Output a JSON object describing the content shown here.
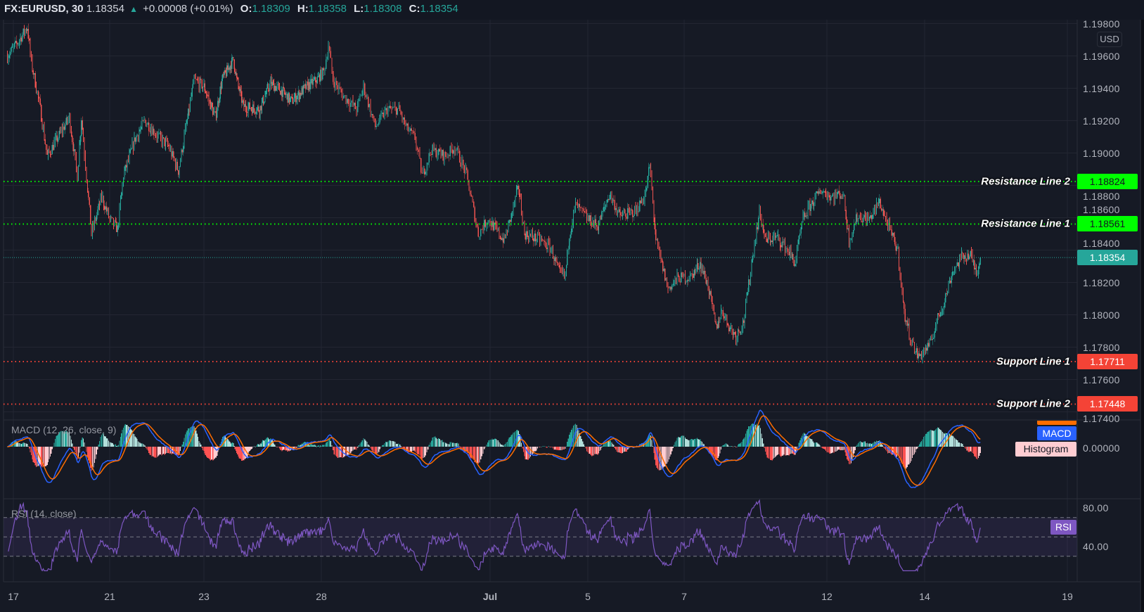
{
  "header": {
    "symbol": "FX:EURUSD, 30",
    "last": "1.18354",
    "change": "+0.00008 (+0.01%)",
    "o_label": "O:",
    "o": "1.18309",
    "h_label": "H:",
    "h": "1.18358",
    "l_label": "L:",
    "l": "1.18308",
    "c_label": "C:",
    "c": "1.18354"
  },
  "price_axis": {
    "currency": "USD",
    "ticks": [
      "1.19800",
      "1.19600",
      "1.19400",
      "1.19200",
      "1.19000",
      "1.18800",
      "1.18600",
      "1.18400",
      "1.18200",
      "1.18000",
      "1.17800",
      "1.17600",
      "1.17400"
    ]
  },
  "time_axis": {
    "ticks": [
      "17",
      "21",
      "23",
      "28",
      "Jul",
      "5",
      "7",
      "12",
      "14",
      "19"
    ]
  },
  "levels": [
    {
      "label": "Resistance Line 2",
      "value": "1.18824",
      "color": "#00ff00"
    },
    {
      "label": "Resistance Line 1",
      "value": "1.18561",
      "color": "#00ff00"
    },
    {
      "label": "Support Line 1",
      "value": "1.17711",
      "color": "#f44336"
    },
    {
      "label": "Support Line 2",
      "value": "1.17448",
      "color": "#f44336"
    }
  ],
  "last_price": {
    "value": "1.18354",
    "color": "#26a69a"
  },
  "macd": {
    "title": "MACD (12, 26, close, 9)",
    "zero_label": "0.00000",
    "macd_tag": "MACD",
    "histogram_tag": "Histogram",
    "colors": {
      "macd": "#2962ff",
      "signal": "#ff6d00",
      "hist_up": "#26a69a",
      "hist_up_weak": "#b2dfdb",
      "hist_down": "#ff5252",
      "hist_down_weak": "#ffcdd2"
    }
  },
  "rsi": {
    "title": "RSI (14, close)",
    "tag": "RSI",
    "axis_labels": [
      "80.00",
      "40.00"
    ],
    "upper": 70,
    "middle": 50,
    "lower": 30,
    "color": "#7e57c2"
  },
  "chart_data": {
    "type": "candlestick",
    "interval": "30",
    "candle_colors": {
      "up": "#26a69a",
      "down": "#ef5350"
    },
    "ylim": [
      1.1735,
      1.1985
    ],
    "last_bar": {
      "open": 1.18309,
      "high": 1.18358,
      "low": 1.18308,
      "close": 1.18354
    },
    "price_path": [
      [
        "Jun 16 21:00",
        1.196
      ],
      [
        "Jun 17 02:00",
        1.1968
      ],
      [
        "Jun 17 07:00",
        1.1978
      ],
      [
        "Jun 17 09:00",
        1.1956
      ],
      [
        "Jun 17 13:00",
        1.1931
      ],
      [
        "Jun 17 17:00",
        1.1898
      ],
      [
        "Jun 17 23:00",
        1.1911
      ],
      [
        "Jun 18 04:00",
        1.1922
      ],
      [
        "Jun 18 08:00",
        1.1886
      ],
      [
        "Jun 18 10:00",
        1.1922
      ],
      [
        "Jun 18 15:00",
        1.185
      ],
      [
        "Jun 18 20:00",
        1.1873
      ],
      [
        "Jun 21 00:00",
        1.1859
      ],
      [
        "Jun 21 04:00",
        1.1853
      ],
      [
        "Jun 21 07:00",
        1.1886
      ],
      [
        "Jun 21 13:00",
        1.1909
      ],
      [
        "Jun 21 18:00",
        1.192
      ],
      [
        "Jun 22 00:00",
        1.1911
      ],
      [
        "Jun 22 06:00",
        1.1904
      ],
      [
        "Jun 22 11:00",
        1.1889
      ],
      [
        "Jun 22 19:00",
        1.1945
      ],
      [
        "Jun 23 00:00",
        1.1941
      ],
      [
        "Jun 23 07:00",
        1.1922
      ],
      [
        "Jun 23 11:00",
        1.1945
      ],
      [
        "Jun 23 18:00",
        1.1958
      ],
      [
        "Jun 23 20:00",
        1.1945
      ],
      [
        "Jun 24 00:00",
        1.1929
      ],
      [
        "Jun 24 10:00",
        1.1927
      ],
      [
        "Jun 24 17:00",
        1.1943
      ],
      [
        "Jun 24 23:00",
        1.1939
      ],
      [
        "Jun 25 06:00",
        1.1932
      ],
      [
        "Jun 25 15:00",
        1.1941
      ],
      [
        "Jun 25 21:00",
        1.1945
      ],
      [
        "Jun 28 01:00",
        1.195
      ],
      [
        "Jun 28 03:00",
        1.1967
      ],
      [
        "Jun 28 05:00",
        1.1945
      ],
      [
        "Jun 28 09:00",
        1.1936
      ],
      [
        "Jun 28 15:00",
        1.1927
      ],
      [
        "Jun 28 18:00",
        1.1941
      ],
      [
        "Jun 28 23:00",
        1.1916
      ],
      [
        "Jun 29 04:00",
        1.1927
      ],
      [
        "Jun 29 09:00",
        1.1927
      ],
      [
        "Jun 29 12:00",
        1.1916
      ],
      [
        "Jun 29 16:00",
        1.1909
      ],
      [
        "Jun 29 19:00",
        1.1886
      ],
      [
        "Jun 29 23:00",
        1.1902
      ],
      [
        "Jun 30 05:00",
        1.1898
      ],
      [
        "Jun 30 09:00",
        1.1904
      ],
      [
        "Jun 30 14:00",
        1.1886
      ],
      [
        "Jun 30 19:00",
        1.185
      ],
      [
        "Jun 30 23:00",
        1.1859
      ],
      [
        "Jul 1 07:00",
        1.1846
      ],
      [
        "Jul 1 10:00",
        1.1859
      ],
      [
        "Jul 1 14:00",
        1.1879
      ],
      [
        "Jul 1 17:00",
        1.185
      ],
      [
        "Jul 2 01:00",
        1.1846
      ],
      [
        "Jul 2 06:00",
        1.1841
      ],
      [
        "Jul 2 10:00",
        1.1826
      ],
      [
        "Jul 2 13:00",
        1.1824
      ],
      [
        "Jul 2 15:00",
        1.185
      ],
      [
        "Jul 2 18:00",
        1.1868
      ],
      [
        "Jul 5 00:00",
        1.1859
      ],
      [
        "Jul 5 05:00",
        1.1855
      ],
      [
        "Jul 5 11:00",
        1.1875
      ],
      [
        "Jul 5 16:00",
        1.1861
      ],
      [
        "Jul 6 00:00",
        1.1864
      ],
      [
        "Jul 6 05:00",
        1.1875
      ],
      [
        "Jul 6 07:00",
        1.1893
      ],
      [
        "Jul 6 10:00",
        1.1846
      ],
      [
        "Jul 6 16:00",
        1.1816
      ],
      [
        "Jul 6 21:00",
        1.1823
      ],
      [
        "Jul 7 03:00",
        1.1823
      ],
      [
        "Jul 7 08:00",
        1.1832
      ],
      [
        "Jul 7 12:00",
        1.1818
      ],
      [
        "Jul 7 16:00",
        1.1792
      ],
      [
        "Jul 7 19:00",
        1.1803
      ],
      [
        "Jul 7 23:00",
        1.1792
      ],
      [
        "Jul 8 02:00",
        1.1787
      ],
      [
        "Jul 8 06:00",
        1.1796
      ],
      [
        "Jul 8 10:00",
        1.1832
      ],
      [
        "Jul 8 14:00",
        1.1864
      ],
      [
        "Jul 8 17:00",
        1.1846
      ],
      [
        "Jul 8 23:00",
        1.1848
      ],
      [
        "Jul 9 05:00",
        1.1839
      ],
      [
        "Jul 9 08:00",
        1.1832
      ],
      [
        "Jul 9 12:00",
        1.1859
      ],
      [
        "Jul 9 16:00",
        1.1868
      ],
      [
        "Jul 9 21:00",
        1.1877
      ],
      [
        "Jul 12 02:00",
        1.1873
      ],
      [
        "Jul 12 08:00",
        1.1875
      ],
      [
        "Jul 12 11:00",
        1.1846
      ],
      [
        "Jul 12 15:00",
        1.1861
      ],
      [
        "Jul 12 21:00",
        1.1859
      ],
      [
        "Jul 13 02:00",
        1.187
      ],
      [
        "Jul 13 05:00",
        1.1859
      ],
      [
        "Jul 13 11:00",
        1.1839
      ],
      [
        "Jul 13 14:00",
        1.1801
      ],
      [
        "Jul 13 18:00",
        1.1782
      ],
      [
        "Jul 13 21:00",
        1.1774
      ],
      [
        "Jul 14 03:00",
        1.1782
      ],
      [
        "Jul 14 06:00",
        1.1796
      ],
      [
        "Jul 14 10:00",
        1.1809
      ],
      [
        "Jul 14 14:00",
        1.1827
      ],
      [
        "Jul 14 19:00",
        1.1836
      ],
      [
        "Jul 14 23:00",
        1.1837
      ],
      [
        "Jul 15 02:00",
        1.1826
      ],
      [
        "Jul 15 04:00",
        1.18354
      ]
    ],
    "macd_params": {
      "fast": 12,
      "slow": 26,
      "source": "close",
      "signal": 9
    },
    "rsi_params": {
      "length": 14,
      "source": "close"
    }
  }
}
